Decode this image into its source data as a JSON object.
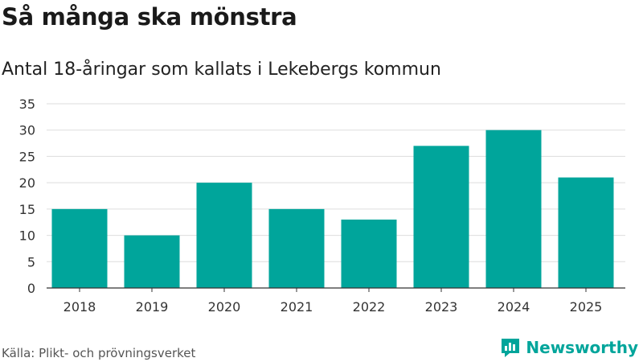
{
  "title": "Så många ska mönstra",
  "subtitle": "Antal 18-åringar som kallats i Lekebergs kommun",
  "source": "Källa: Plikt- och prövningsverket",
  "brand": {
    "name": "Newsworthy",
    "icon": "newsworthy-logo-icon"
  },
  "colors": {
    "bar": "#00a59b",
    "grid": "#dddddd",
    "axis": "#333333",
    "brand": "#00a59b"
  },
  "chart_data": {
    "type": "bar",
    "title": "Så många ska mönstra",
    "subtitle": "Antal 18-åringar som kallats i Lekebergs kommun",
    "xlabel": "",
    "ylabel": "",
    "categories": [
      "2018",
      "2019",
      "2020",
      "2021",
      "2022",
      "2023",
      "2024",
      "2025"
    ],
    "values": [
      15,
      10,
      20,
      15,
      13,
      27,
      30,
      21
    ],
    "ylim": [
      0,
      35
    ],
    "yticks": [
      0,
      5,
      10,
      15,
      20,
      25,
      30,
      35
    ],
    "grid": true
  }
}
